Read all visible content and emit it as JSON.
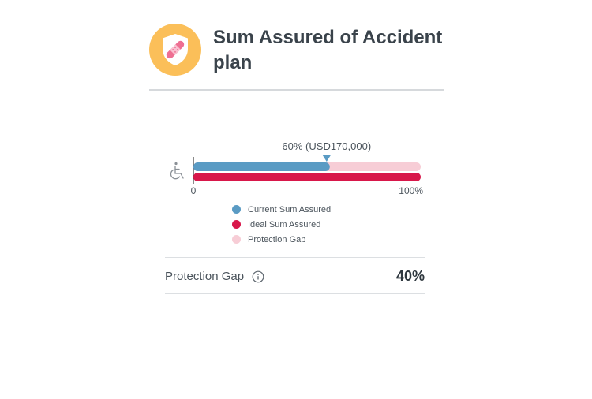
{
  "header": {
    "title": "Sum Assured of Accident plan",
    "badge_icon": "shield-bandage-icon",
    "badge_color": "#fbbf59"
  },
  "chart_data": {
    "type": "bar",
    "orientation": "horizontal",
    "row_icon": "wheelchair-icon",
    "marker_label": "60% (USD170,000)",
    "x_tick_labels": [
      "0",
      "100%"
    ],
    "xlim": [
      0,
      100
    ],
    "series": [
      {
        "name": "Current Sum Assured",
        "value": 60,
        "color": "#5a9bc4"
      },
      {
        "name": "Ideal Sum Assured",
        "value": 100,
        "color": "#d8174a"
      },
      {
        "name": "Protection Gap",
        "value": 40,
        "color": "#f7cdd6"
      }
    ],
    "legend": [
      "Current Sum Assured",
      "Ideal Sum Assured",
      "Protection Gap"
    ],
    "legend_placement": "bottom"
  },
  "summary": {
    "label": "Protection Gap",
    "info_icon": "info-icon",
    "value": "40%"
  }
}
